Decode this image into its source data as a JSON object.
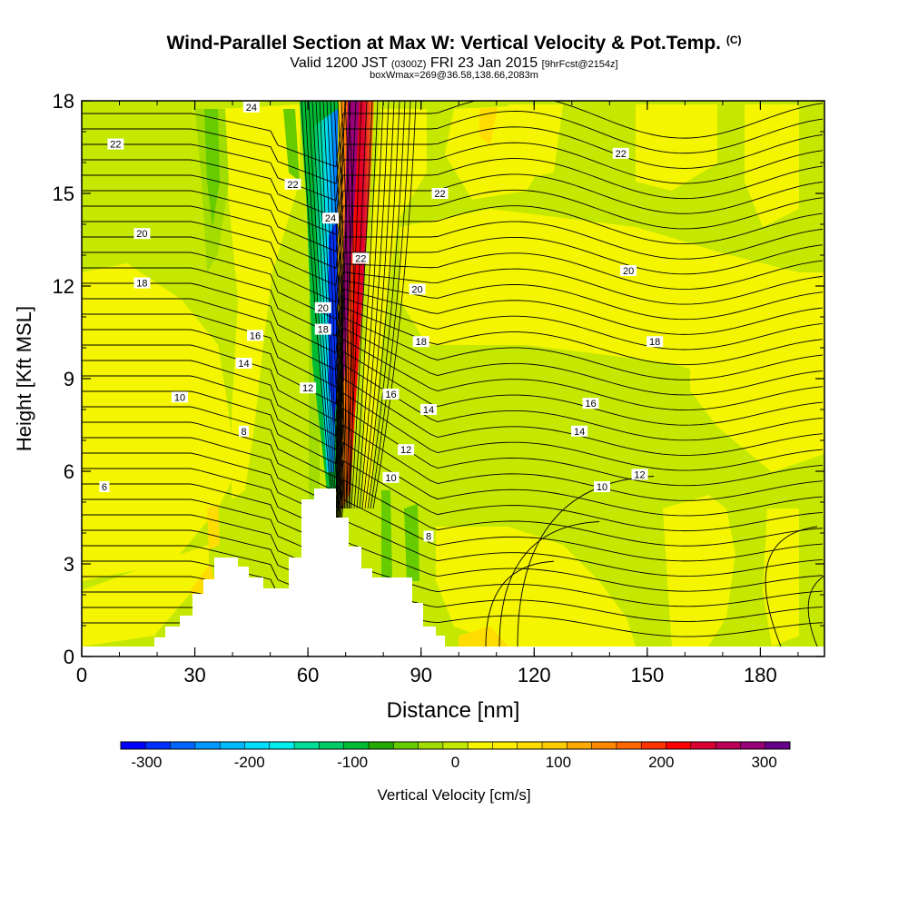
{
  "title": {
    "main": "Wind-Parallel Section at Max W: Vertical Velocity & Pot.Temp.",
    "mark": "(C)"
  },
  "subtitle": {
    "valid": "Valid 1200 JST",
    "utc": "(0300Z)",
    "date": "FRI 23 Jan 2015",
    "forecast": "[9hrFcst@2154z]",
    "box": "boxWmax=269@36.58,138.66,2083m"
  },
  "colors": {
    "background": "#ffffff",
    "terrain": "#ffffff",
    "contour_line": "#000000",
    "near_zero_low": "#c5e800",
    "near_zero_high": "#f5f500"
  },
  "chart_data": {
    "type": "heatmap",
    "xlabel": "Distance [nm]",
    "ylabel": "Height [Kft MSL]",
    "xlim": [
      0,
      197
    ],
    "ylim": [
      0,
      18
    ],
    "x_ticks": [
      0,
      30,
      60,
      90,
      120,
      150,
      180
    ],
    "y_ticks": [
      0,
      3,
      6,
      9,
      12,
      15,
      18
    ],
    "grid": false,
    "colorbar": {
      "label": "Vertical Velocity [cm/s]",
      "placement": "bottom",
      "tick_labels": [
        -300,
        -200,
        -100,
        0,
        100,
        200,
        300
      ],
      "levels": [
        -325,
        -300,
        -275,
        -250,
        -225,
        -200,
        -175,
        -150,
        -125,
        -100,
        -75,
        -50,
        -25,
        0,
        25,
        50,
        75,
        100,
        125,
        150,
        175,
        200,
        225,
        250,
        275,
        300,
        325
      ],
      "colors": [
        "#0000ff",
        "#0030ff",
        "#0066ff",
        "#0099ff",
        "#00bbff",
        "#00ddff",
        "#00eeee",
        "#00dd99",
        "#00cc66",
        "#00bb33",
        "#22aa00",
        "#66cc00",
        "#a2dc00",
        "#c5e800",
        "#f5f500",
        "#ffee00",
        "#ffdd00",
        "#ffcc00",
        "#ffaa00",
        "#ff8800",
        "#ff6600",
        "#ff3300",
        "#ff0000",
        "#dd0033",
        "#bb0055",
        "#990077",
        "#660088"
      ]
    },
    "contour_field": "Potential Temperature",
    "contour_labels": [
      {
        "text": "24",
        "x": 45,
        "y": 17.8
      },
      {
        "text": "22",
        "x": 9,
        "y": 16.6
      },
      {
        "text": "22",
        "x": 56,
        "y": 15.3
      },
      {
        "text": "22",
        "x": 95,
        "y": 15.0
      },
      {
        "text": "22",
        "x": 143,
        "y": 16.3
      },
      {
        "text": "24",
        "x": 66,
        "y": 14.2
      },
      {
        "text": "22",
        "x": 74,
        "y": 12.9
      },
      {
        "text": "20",
        "x": 16,
        "y": 13.7
      },
      {
        "text": "20",
        "x": 89,
        "y": 11.9
      },
      {
        "text": "20",
        "x": 145,
        "y": 12.5
      },
      {
        "text": "20",
        "x": 64,
        "y": 11.3
      },
      {
        "text": "18",
        "x": 16,
        "y": 12.1
      },
      {
        "text": "18",
        "x": 64,
        "y": 10.6
      },
      {
        "text": "18",
        "x": 90,
        "y": 10.2
      },
      {
        "text": "18",
        "x": 152,
        "y": 10.2
      },
      {
        "text": "16",
        "x": 46,
        "y": 10.4
      },
      {
        "text": "16",
        "x": 82,
        "y": 8.5
      },
      {
        "text": "16",
        "x": 135,
        "y": 8.2
      },
      {
        "text": "14",
        "x": 43,
        "y": 9.5
      },
      {
        "text": "14",
        "x": 92,
        "y": 8.0
      },
      {
        "text": "14",
        "x": 132,
        "y": 7.3
      },
      {
        "text": "12",
        "x": 60,
        "y": 8.7
      },
      {
        "text": "12",
        "x": 86,
        "y": 6.7
      },
      {
        "text": "12",
        "x": 148,
        "y": 5.9
      },
      {
        "text": "10",
        "x": 26,
        "y": 8.4
      },
      {
        "text": "10",
        "x": 82,
        "y": 5.8
      },
      {
        "text": "10",
        "x": 138,
        "y": 5.5
      },
      {
        "text": "8",
        "x": 43,
        "y": 7.3
      },
      {
        "text": "8",
        "x": 92,
        "y": 3.9
      },
      {
        "text": "6",
        "x": 6,
        "y": 5.5
      }
    ]
  }
}
